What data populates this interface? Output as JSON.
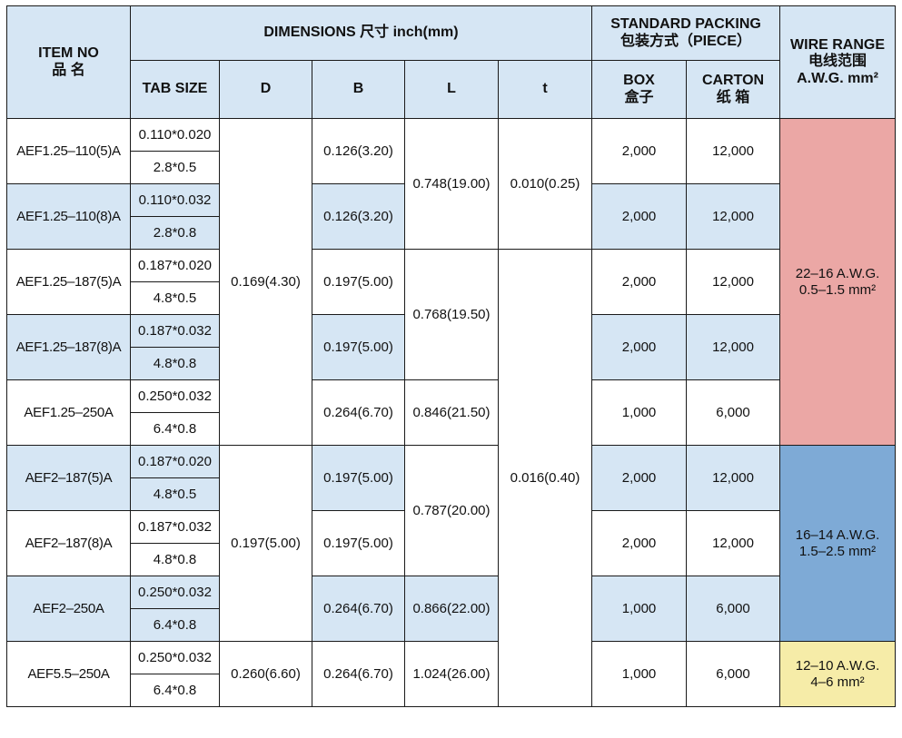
{
  "header": {
    "item_no": "ITEM NO",
    "item_no_cn": "品 名",
    "dimensions": "DIMENSIONS 尺寸  inch(mm)",
    "standard_packing": "STANDARD PACKING",
    "standard_packing_cn": "包装方式（PIECE）",
    "wire_range": "WIRE RANGE",
    "wire_range_cn": "电线范围",
    "wire_range_unit": "A.W.G.  mm²",
    "tab_size": "TAB SIZE",
    "d": "D",
    "b": "B",
    "l": "L",
    "t": "t",
    "box": "BOX",
    "box_cn": "盒子",
    "carton": "CARTON",
    "carton_cn": "纸 箱"
  },
  "rows": [
    {
      "item": "AEF1.25–110(5)A",
      "tab_inch": "0.110*0.020",
      "tab_mm": "2.8*0.5",
      "b": "0.126(3.20)",
      "box": "2,000",
      "carton": "12,000"
    },
    {
      "item": "AEF1.25–110(8)A",
      "tab_inch": "0.110*0.032",
      "tab_mm": "2.8*0.8",
      "b": "0.126(3.20)",
      "box": "2,000",
      "carton": "12,000"
    },
    {
      "item": "AEF1.25–187(5)A",
      "tab_inch": "0.187*0.020",
      "tab_mm": "4.8*0.5",
      "b": "0.197(5.00)",
      "box": "2,000",
      "carton": "12,000"
    },
    {
      "item": "AEF1.25–187(8)A",
      "tab_inch": "0.187*0.032",
      "tab_mm": "4.8*0.8",
      "b": "0.197(5.00)",
      "box": "2,000",
      "carton": "12,000"
    },
    {
      "item": "AEF1.25–250A",
      "tab_inch": "0.250*0.032",
      "tab_mm": "6.4*0.8",
      "b": "0.264(6.70)",
      "box": "1,000",
      "carton": "6,000"
    },
    {
      "item": "AEF2–187(5)A",
      "tab_inch": "0.187*0.020",
      "tab_mm": "4.8*0.5",
      "b": "0.197(5.00)",
      "box": "2,000",
      "carton": "12,000"
    },
    {
      "item": "AEF2–187(8)A",
      "tab_inch": "0.187*0.032",
      "tab_mm": "4.8*0.8",
      "b": "0.197(5.00)",
      "box": "2,000",
      "carton": "12,000"
    },
    {
      "item": "AEF2–250A",
      "tab_inch": "0.250*0.032",
      "tab_mm": "6.4*0.8",
      "b": "0.264(6.70)",
      "box": "1,000",
      "carton": "6,000"
    },
    {
      "item": "AEF5.5–250A",
      "tab_inch": "0.250*0.032",
      "tab_mm": "6.4*0.8",
      "b": "0.264(6.70)",
      "box": "1,000",
      "carton": "6,000"
    }
  ],
  "merged": {
    "d_1": "0.169(4.30)",
    "d_2": "0.197(5.00)",
    "d_3": "0.260(6.60)",
    "l_1": "0.748(19.00)",
    "l_2": "0.768(19.50)",
    "l_3": "0.846(21.50)",
    "l_4": "0.787(20.00)",
    "l_5": "0.866(22.00)",
    "l_6": "1.024(26.00)",
    "t_1": "0.010(0.25)",
    "t_2": "0.016(0.40)",
    "wire_1_awg": "22–16 A.W.G.",
    "wire_1_mm": "0.5–1.5  mm²",
    "wire_2_awg": "16–14 A.W.G.",
    "wire_2_mm": "1.5–2.5  mm²",
    "wire_3_awg": "12–10  A.W.G.",
    "wire_3_mm": "4–6  mm²"
  },
  "colors": {
    "header_blue": "#d6e6f4",
    "row_blue": "#d6e6f4",
    "wire_pink": "#eba7a5",
    "wire_blue": "#7eaad6",
    "wire_yellow": "#f6eca8"
  }
}
